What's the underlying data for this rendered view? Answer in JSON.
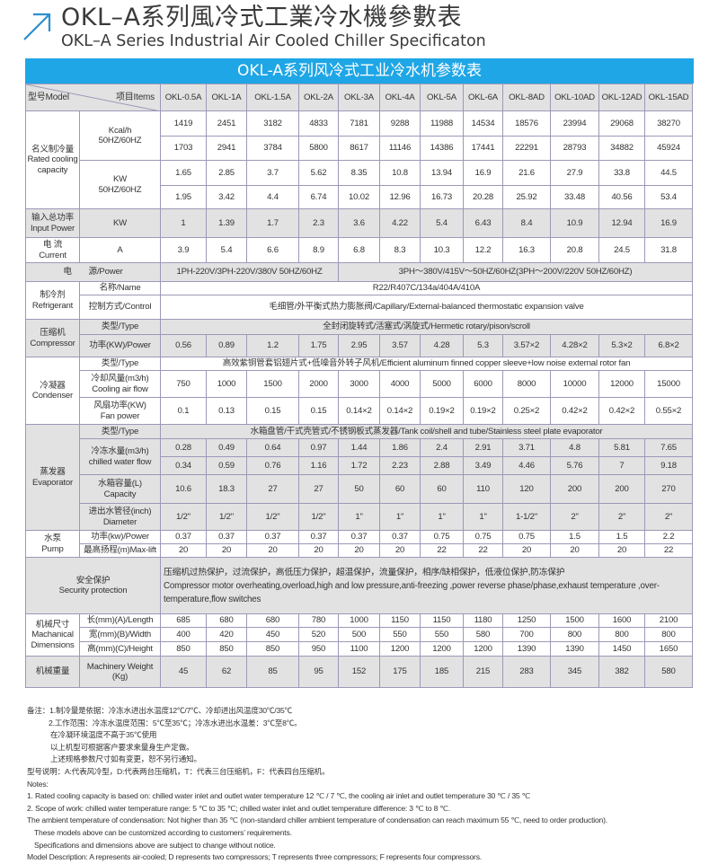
{
  "header": {
    "title_cn": "OKL–A系列風冷式工業冷水機參數表",
    "title_en": "OKL–A Series Industrial Air Cooled Chiller Specificaton",
    "icon": "arrow-up-right-icon",
    "accent_color": "#1ea6e6"
  },
  "table": {
    "title": "OKL-A系列风冷式工业冷水机参数表",
    "model_label": "型号Model",
    "items_label": "项目Items",
    "models": [
      "OKL-0.5A",
      "OKL-1A",
      "OKL-1.5A",
      "OKL-2A",
      "OKL-3A",
      "OKL-4A",
      "OKL-5A",
      "OKL-6A",
      "OKL-8AD",
      "OKL-10AD",
      "OKL-12AD",
      "OKL-15AD"
    ],
    "cooling": {
      "label_cn": "名义制冷量",
      "label_en": "Rated cooling capacity",
      "kcal_unit": "Kcal/h",
      "kcal_freq": "50HZ/60HZ",
      "kcal_50": [
        "1419",
        "2451",
        "3182",
        "4833",
        "7181",
        "9288",
        "11988",
        "14534",
        "18576",
        "23994",
        "29068",
        "38270"
      ],
      "kcal_60": [
        "1703",
        "2941",
        "3784",
        "5800",
        "8617",
        "11146",
        "14386",
        "17441",
        "22291",
        "28793",
        "34882",
        "45924"
      ],
      "kw_unit": "KW",
      "kw_freq": "50HZ/60HZ",
      "kw_50": [
        "1.65",
        "2.85",
        "3.7",
        "5.62",
        "8.35",
        "10.8",
        "13.94",
        "16.9",
        "21.6",
        "27.9",
        "33.8",
        "44.5"
      ],
      "kw_60": [
        "1.95",
        "3.42",
        "4.4",
        "6.74",
        "10.02",
        "12.96",
        "16.73",
        "20.28",
        "25.92",
        "33.48",
        "40.56",
        "53.4"
      ]
    },
    "input_power": {
      "label_cn": "输入总功率",
      "label_en": "Input Power",
      "unit": "KW",
      "values": [
        "1",
        "1.39",
        "1.7",
        "2.3",
        "3.6",
        "4.22",
        "5.4",
        "6.43",
        "8.4",
        "10.9",
        "12.94",
        "16.9"
      ]
    },
    "current": {
      "label_cn": "电 流",
      "label_en": "Current",
      "unit": "A",
      "values": [
        "3.9",
        "5.4",
        "6.6",
        "8.9",
        "6.8",
        "8.3",
        "10.3",
        "12.2",
        "16.3",
        "20.8",
        "24.5",
        "31.8"
      ]
    },
    "power": {
      "label": "电　　源/Power",
      "single_phase": "1PH-220V/3PH-220V/380V 50HZ/60HZ",
      "three_phase": "3PH～380V/415V～50HZ/60HZ(3PH～200V/220V   50HZ/60HZ)"
    },
    "refrigerant": {
      "label_cn": "制冷剂",
      "label_en": "Refrigerant",
      "name_label": "名称/Name",
      "name": "R22/R407C/134a/404A/410A",
      "control_label": "控制方式/Control",
      "control": "毛细管/外平衡式热力膨胀阀/Capillary/External-balanced thermostatic expansion valve"
    },
    "compressor": {
      "label_cn": "压缩机",
      "label_en": "Compressor",
      "type_label": "类型/Type",
      "type": "全封闭旋转式/活塞式/涡旋式/Hermetic rotary/pison/scroll",
      "power_label": "功率(KW)/Power",
      "power": [
        "0.56",
        "0.89",
        "1.2",
        "1.75",
        "2.95",
        "3.57",
        "4.28",
        "5.3",
        "3.57×2",
        "4.28×2",
        "5.3×2",
        "6.8×2"
      ]
    },
    "condenser": {
      "label_cn": "冷凝器",
      "label_en": "Condenser",
      "type_label": "类型/Type",
      "type": "高效紫铜管套铝翅片式+低噪音外转子风机/Efficient aluminum finned copper sleeve+low noise external rotor fan",
      "airflow_label_cn": "冷却风量(m3/h)",
      "airflow_label_en": "Cooling air flow",
      "airflow": [
        "750",
        "1000",
        "1500",
        "2000",
        "3000",
        "4000",
        "5000",
        "6000",
        "8000",
        "10000",
        "12000",
        "15000"
      ],
      "fan_label_cn": "风扇功率(KW)",
      "fan_label_en": "Fan power",
      "fan": [
        "0.1",
        "0.13",
        "0.15",
        "0.15",
        "0.14×2",
        "0.14×2",
        "0.19×2",
        "0.19×2",
        "0.25×2",
        "0.42×2",
        "0.42×2",
        "0.55×2"
      ]
    },
    "evaporator": {
      "label_cn": "蒸发器",
      "label_en": "Evaporator",
      "type_label": "类型/Type",
      "type": "水箱盘管/干式壳管式/不锈钢板式蒸发器/Tank coil/shell and tube/Stainless steel plate evaporator",
      "flow_label_cn": "冷冻水量(m3/h)",
      "flow_label_en": "chilled water flow",
      "flow_50": [
        "0.28",
        "0.49",
        "0.64",
        "0.97",
        "1.44",
        "1.86",
        "2.4",
        "2.91",
        "3.71",
        "4.8",
        "5.81",
        "7.65"
      ],
      "flow_60": [
        "0.34",
        "0.59",
        "0.76",
        "1.16",
        "1.72",
        "2.23",
        "2.88",
        "3.49",
        "4.46",
        "5.76",
        "7",
        "9.18"
      ],
      "capacity_label_cn": "水箱容量(L)",
      "capacity_label_en": "Capacity",
      "capacity": [
        "10.6",
        "18.3",
        "27",
        "27",
        "50",
        "60",
        "60",
        "110",
        "120",
        "200",
        "200",
        "270"
      ],
      "diameter_label_cn": "进出水管径(inch)",
      "diameter_label_en": "Diameter",
      "diameter": [
        "1/2\"",
        "1/2\"",
        "1/2\"",
        "1/2\"",
        "1\"",
        "1\"",
        "1\"",
        "1\"",
        "1-1/2\"",
        "2\"",
        "2\"",
        "2\""
      ]
    },
    "pump": {
      "label_cn": "水泵",
      "label_en": "Pump",
      "power_label": "功率(kw)/Power",
      "power": [
        "0.37",
        "0.37",
        "0.37",
        "0.37",
        "0.37",
        "0.37",
        "0.75",
        "0.75",
        "0.75",
        "1.5",
        "1.5",
        "2.2"
      ],
      "lift_label": "最高扬程(m)Max-lift",
      "lift": [
        "20",
        "20",
        "20",
        "20",
        "20",
        "20",
        "22",
        "22",
        "20",
        "20",
        "20",
        "22"
      ]
    },
    "security": {
      "label_cn": "安全保护",
      "label_en": "Security protection",
      "text_cn": "压缩机过热保护，过流保护，高低压力保护，超温保护，流量保护，相序/缺相保护，低液位保护,防冻保护",
      "text_en": "Compressor motor overheating,overload,high and low pressure,anti-freezing ,power reverse phase/phase,exhaust temperature ,over-temperature,flow switches"
    },
    "dimensions": {
      "label_cn": "机械尺寸",
      "label_en_1": "Machanical",
      "label_en_2": "Dimensions",
      "length_label": "长(mm)(A)/Length",
      "length": [
        "685",
        "680",
        "680",
        "780",
        "1000",
        "1150",
        "1150",
        "1180",
        "1250",
        "1500",
        "1600",
        "2100"
      ],
      "width_label": "宽(mm)(B)/Width",
      "width": [
        "400",
        "420",
        "450",
        "520",
        "500",
        "550",
        "550",
        "580",
        "700",
        "800",
        "800",
        "800"
      ],
      "height_label": "高(mm)(C)/Height",
      "height": [
        "850",
        "850",
        "850",
        "950",
        "1100",
        "1200",
        "1200",
        "1200",
        "1390",
        "1390",
        "1450",
        "1650"
      ]
    },
    "weight": {
      "label_cn": "机械重量",
      "label_en_1": "Machinery Weight",
      "label_en_2": "(Kg)",
      "values": [
        "45",
        "62",
        "85",
        "95",
        "152",
        "175",
        "185",
        "215",
        "283",
        "345",
        "382",
        "580"
      ]
    }
  },
  "notes": [
    "备注：1.制冷量是依据：冷冻水进出水温度12℃/7℃、冷却进出风温度30℃/35℃",
    "2.工作范围：冷冻水温度范围：5℃至35℃；冷冻水进出水温差：3℃至8℃。",
    "在冷凝环境温度不高于35℃使用",
    "以上机型可根据客户要求来量身生产定做。",
    "上述规格参数尺寸如有变更，恕不另行通知。",
    "型号说明：A:代表风冷型，D:代表两台压缩机，T：代表三台压缩机，F：代表四台压缩机。",
    "Notes:",
    "1. Rated cooling capacity is based on: chilled water inlet and outlet water temperature 12 ℃ / 7 ℃, the cooling air inlet and outlet temperature 30 ℃ / 35 ℃",
    "2. Scope of work: chilled water temperature range: 5 ℃ to 35 ℃; chilled water inlet and outlet temperature difference: 3 ℃ to 8 ℃.",
    "The ambient temperature of condensation: Not higher than 35 ℃ (non-standard chiller ambient temperature of condensation can reach maximum 55 ℃, need to order production).",
    "These models above can be customized according to customers’  requirements.",
    "Specifications and dimensions above are subject to change without notice.",
    "Model Description: A represents air-cooled; D represents two compressors; T represents three compressors; F represents four compressors."
  ]
}
